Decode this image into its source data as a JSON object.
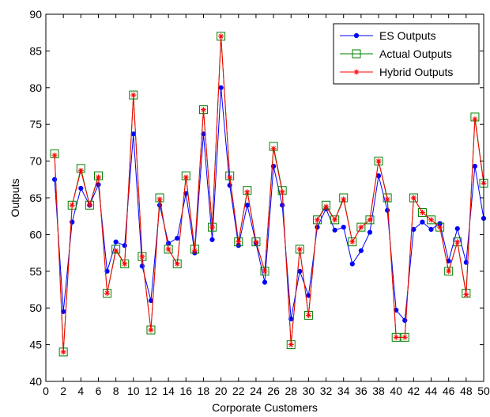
{
  "chart_data": {
    "type": "line",
    "title": "",
    "xlabel": "Corporate Customers",
    "ylabel": "Outputs",
    "xlim": [
      0,
      50
    ],
    "ylim": [
      40,
      90
    ],
    "xticks": [
      0,
      2,
      4,
      6,
      8,
      10,
      12,
      14,
      16,
      18,
      20,
      22,
      24,
      26,
      28,
      30,
      32,
      34,
      36,
      38,
      40,
      42,
      44,
      46,
      48,
      50
    ],
    "yticks": [
      40,
      45,
      50,
      55,
      60,
      65,
      70,
      75,
      80,
      85,
      90
    ],
    "grid": false,
    "legend_position": "top-right",
    "x": [
      1,
      2,
      3,
      4,
      5,
      6,
      7,
      8,
      9,
      10,
      11,
      12,
      13,
      14,
      15,
      16,
      17,
      18,
      19,
      20,
      21,
      22,
      23,
      24,
      25,
      26,
      27,
      28,
      29,
      30,
      31,
      32,
      33,
      34,
      35,
      36,
      37,
      38,
      39,
      40,
      41,
      42,
      43,
      44,
      45,
      46,
      47,
      48,
      49,
      50
    ],
    "series": [
      {
        "name": "ES Outputs",
        "color": "#0000ff",
        "marker": "dot",
        "values": [
          67.5,
          49.5,
          61.7,
          66.3,
          64.0,
          66.8,
          55.0,
          59.0,
          58.5,
          73.7,
          55.7,
          51.0,
          64.0,
          58.8,
          59.5,
          65.6,
          57.5,
          73.7,
          59.3,
          80.0,
          66.7,
          58.5,
          64.0,
          58.8,
          53.5,
          69.3,
          64.0,
          48.5,
          55.0,
          51.7,
          61.0,
          63.5,
          60.6,
          61.0,
          56.0,
          57.8,
          60.3,
          68.0,
          63.3,
          49.7,
          48.3,
          60.7,
          61.7,
          60.7,
          61.5,
          56.4,
          60.8,
          56.2,
          69.3,
          62.2
        ]
      },
      {
        "name": "Actual Outputs",
        "color": "#008000",
        "marker": "square",
        "values": [
          71,
          44,
          64,
          69,
          64,
          68,
          52,
          58,
          56,
          79,
          57,
          47,
          65,
          58,
          56,
          68,
          58,
          77,
          61,
          87,
          68,
          59,
          66,
          59,
          55,
          72,
          66,
          45,
          58,
          49,
          62,
          64,
          62,
          65,
          59,
          61,
          62,
          70,
          65,
          46,
          46,
          65,
          63,
          62,
          61,
          55,
          59,
          52,
          76,
          67
        ]
      },
      {
        "name": "Hybrid Outputs",
        "color": "#ff0000",
        "marker": "star",
        "values": [
          70.8,
          44.0,
          64.0,
          68.7,
          64.0,
          67.8,
          52.0,
          57.8,
          56.0,
          79.0,
          57.0,
          47.0,
          64.8,
          58.0,
          56.0,
          67.8,
          57.8,
          77.0,
          61.0,
          87.0,
          67.8,
          59.0,
          65.8,
          59.0,
          55.0,
          71.7,
          65.8,
          45.0,
          58.0,
          49.0,
          62.0,
          63.8,
          62.0,
          64.8,
          59.0,
          61.0,
          62.0,
          70.0,
          64.8,
          46.0,
          46.0,
          65.0,
          63.0,
          62.0,
          61.0,
          55.0,
          59.0,
          51.8,
          75.7,
          67.0
        ]
      }
    ]
  }
}
